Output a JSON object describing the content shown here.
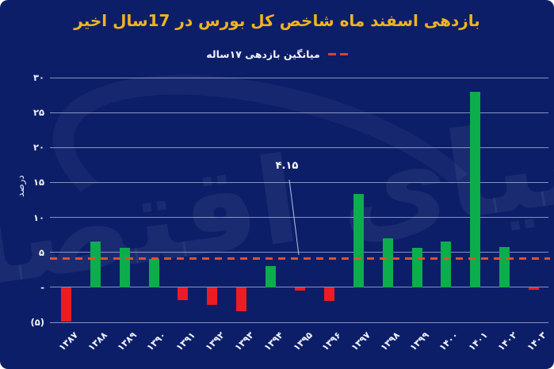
{
  "title": "بازدهی اسفند ماه شاخص کل بورس در 17سال اخیر",
  "legend": {
    "label": "میانگین بازدهی ۱۷ساله"
  },
  "watermark": "دنیای اقتصاد",
  "y_axis": {
    "title": "درصد",
    "ticks": [
      {
        "label": "۳۰",
        "value": 30
      },
      {
        "label": "۲۵",
        "value": 25
      },
      {
        "label": "۲۰",
        "value": 20
      },
      {
        "label": "۱۵",
        "value": 15
      },
      {
        "label": "۱۰",
        "value": 10
      },
      {
        "label": "۵",
        "value": 5
      },
      {
        "label": "-",
        "value": 0
      },
      {
        "label": "(۵)",
        "value": -5
      }
    ]
  },
  "annotation": {
    "label": "۴.۱۵",
    "value": 4.15
  },
  "colors": {
    "background": "#0D1E69",
    "title": "#F0B41E",
    "positive_bar": "#0CAD4B",
    "negative_bar": "#EC1C24",
    "average_line": "#E0512D",
    "legend_dash": "#E0402C",
    "gridline": "#AEBBDE",
    "text": "#FFFFFF"
  },
  "chart_data": {
    "type": "bar",
    "title": "بازدهی اسفند ماه شاخص کل بورس در 17سال اخیر",
    "subtitle_legend": "میانگین بازدهی ۱۷ساله",
    "ylabel": "درصد",
    "categories": [
      "۱۳۸۷",
      "۱۳۸۸",
      "۱۳۸۹",
      "۱۳۹۰",
      "۱۳۹۱",
      "۱۳۹۲",
      "۱۳۹۳",
      "۱۳۹۴",
      "۱۳۹۵",
      "۱۳۹۶",
      "۱۳۹۷",
      "۱۳۹۸",
      "۱۳۹۹",
      "۱۴۰۰",
      "۱۴۰۱",
      "۱۴۰۲",
      "۱۴۰۳"
    ],
    "categories_en": [
      1387,
      1388,
      1389,
      1390,
      1391,
      1392,
      1393,
      1394,
      1395,
      1396,
      1397,
      1398,
      1399,
      1400,
      1401,
      1402,
      1403
    ],
    "values": [
      -4.9,
      6.6,
      5.6,
      4.1,
      -1.8,
      -2.5,
      -3.4,
      3.0,
      -0.5,
      -1.9,
      13.3,
      7.0,
      5.6,
      6.5,
      28.0,
      5.8,
      -0.4
    ],
    "average_line": 4.15,
    "ylim": [
      -5,
      30
    ],
    "grid": true,
    "legend_position": "top-center"
  }
}
